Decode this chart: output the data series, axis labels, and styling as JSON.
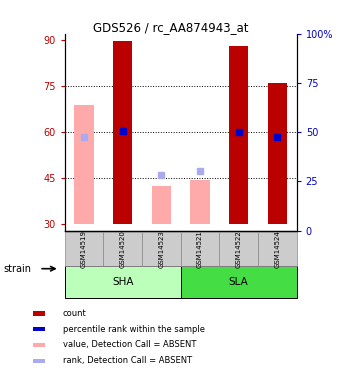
{
  "title": "GDS526 / rc_AA874943_at",
  "samples": [
    "GSM14519",
    "GSM14520",
    "GSM14523",
    "GSM14521",
    "GSM14522",
    "GSM14524"
  ],
  "groups": {
    "SHA": [
      0,
      1,
      2
    ],
    "SLA": [
      3,
      4,
      5
    ]
  },
  "group_labels": [
    "SHA",
    "SLA"
  ],
  "ylim_left": [
    28,
    92
  ],
  "ylim_right": [
    0,
    100
  ],
  "yticks_left": [
    30,
    45,
    60,
    75,
    90
  ],
  "yticks_right": [
    0,
    25,
    50,
    75,
    100
  ],
  "yticklabels_right": [
    "0",
    "25",
    "50",
    "75",
    "100%"
  ],
  "red_bars": [
    null,
    89.5,
    null,
    null,
    88.0,
    76.0
  ],
  "pink_bars": [
    69.0,
    null,
    42.5,
    44.5,
    null,
    null
  ],
  "blue_squares": [
    null,
    60.5,
    null,
    null,
    60.0,
    58.5
  ],
  "light_blue_squares": [
    58.5,
    null,
    46.0,
    47.5,
    null,
    null
  ],
  "bar_bottom": 30,
  "bar_width": 0.5,
  "red_color": "#bb0000",
  "pink_color": "#ffaaaa",
  "blue_color": "#0000cc",
  "light_blue_color": "#aaaaee",
  "sha_color": "#bbffbb",
  "sla_color": "#44dd44",
  "label_bg_color": "#cccccc",
  "dotted_lines": [
    45,
    60,
    75
  ],
  "legend_items": [
    {
      "color": "#bb0000",
      "label": "count"
    },
    {
      "color": "#0000cc",
      "label": "percentile rank within the sample"
    },
    {
      "color": "#ffaaaa",
      "label": "value, Detection Call = ABSENT"
    },
    {
      "color": "#aaaaee",
      "label": "rank, Detection Call = ABSENT"
    }
  ]
}
